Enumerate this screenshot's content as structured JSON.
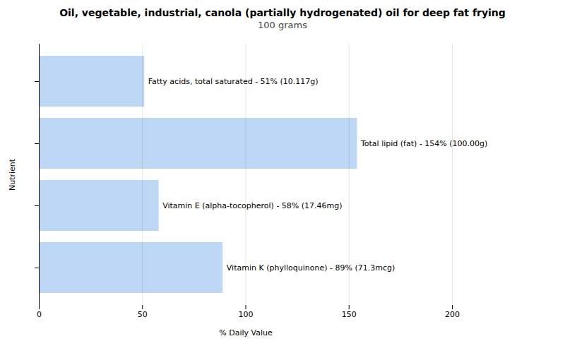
{
  "chart_data": {
    "type": "bar",
    "orientation": "horizontal",
    "title": "Oil, vegetable, industrial, canola (partially hydrogenated) oil for deep fat frying",
    "subtitle": "100 grams",
    "xlabel": "% Daily Value",
    "ylabel": "Nutrient",
    "categories": [
      "Fatty acids, total saturated - 51% (10.117g)",
      "Total lipid (fat) - 154% (100.00g)",
      "Vitamin E (alpha-tocopherol) - 58% (17.46mg)",
      "Vitamin K (phylloquinone) - 89% (71.3mcg)"
    ],
    "values": [
      51,
      154,
      58,
      89
    ],
    "color": "#bdd7f5",
    "xlim": [
      0,
      200
    ],
    "xticks": [
      0,
      50,
      100,
      150,
      200
    ],
    "grid": true,
    "tick_labels": "x"
  }
}
